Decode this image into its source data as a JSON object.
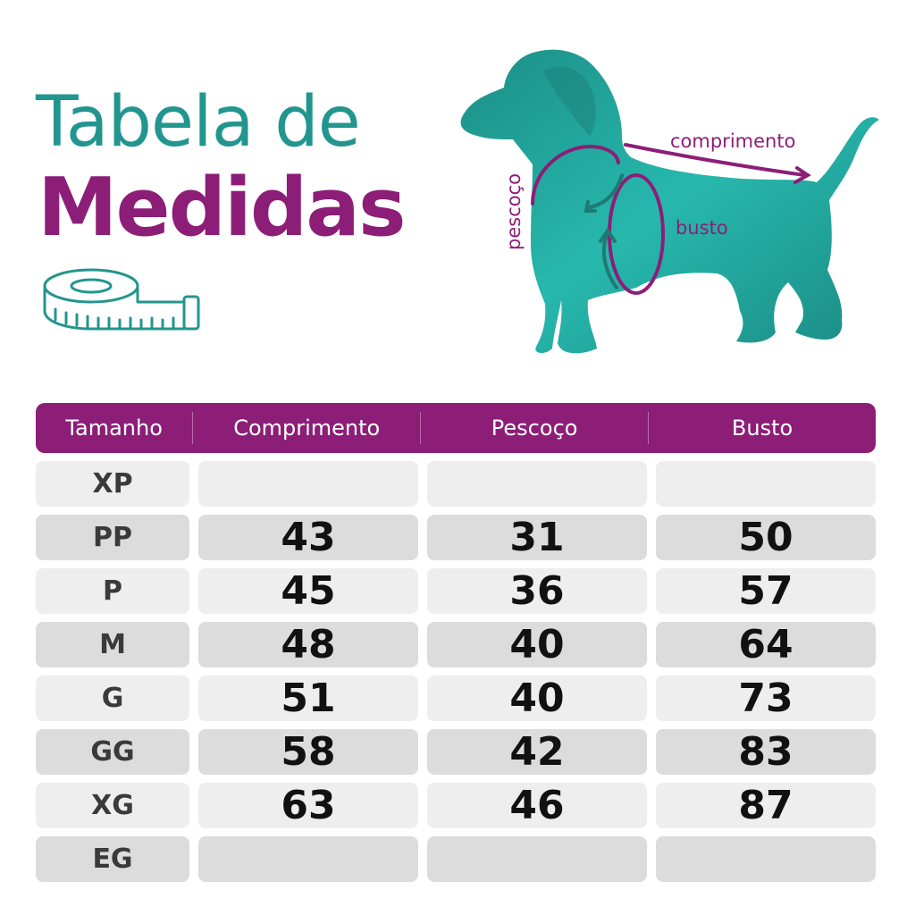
{
  "title": {
    "line1": "Tabela de",
    "line2": "Medidas"
  },
  "illustration": {
    "labels": {
      "length": "comprimento",
      "neck": "pescoço",
      "chest": "busto"
    },
    "colors": {
      "dog": "#22a89f",
      "measure_line": "#8c1e78",
      "arrow": "#1f7a74"
    }
  },
  "icons": {
    "tape": "measuring-tape-icon"
  },
  "table": {
    "headers": [
      "Tamanho",
      "Comprimento",
      "Pescoço",
      "Busto"
    ],
    "rows": [
      {
        "size": "XP",
        "comprimento": "",
        "pescoco": "",
        "busto": ""
      },
      {
        "size": "PP",
        "comprimento": "43",
        "pescoco": "31",
        "busto": "50"
      },
      {
        "size": "P",
        "comprimento": "45",
        "pescoco": "36",
        "busto": "57"
      },
      {
        "size": "M",
        "comprimento": "48",
        "pescoco": "40",
        "busto": "64"
      },
      {
        "size": "G",
        "comprimento": "51",
        "pescoco": "40",
        "busto": "73"
      },
      {
        "size": "GG",
        "comprimento": "58",
        "pescoco": "42",
        "busto": "83"
      },
      {
        "size": "XG",
        "comprimento": "63",
        "pescoco": "46",
        "busto": "87"
      },
      {
        "size": "EG",
        "comprimento": "",
        "pescoco": "",
        "busto": ""
      }
    ]
  },
  "colors": {
    "header_bg": "#8c1e78",
    "title_teal": "#23958f",
    "title_purple": "#8c1e78"
  }
}
